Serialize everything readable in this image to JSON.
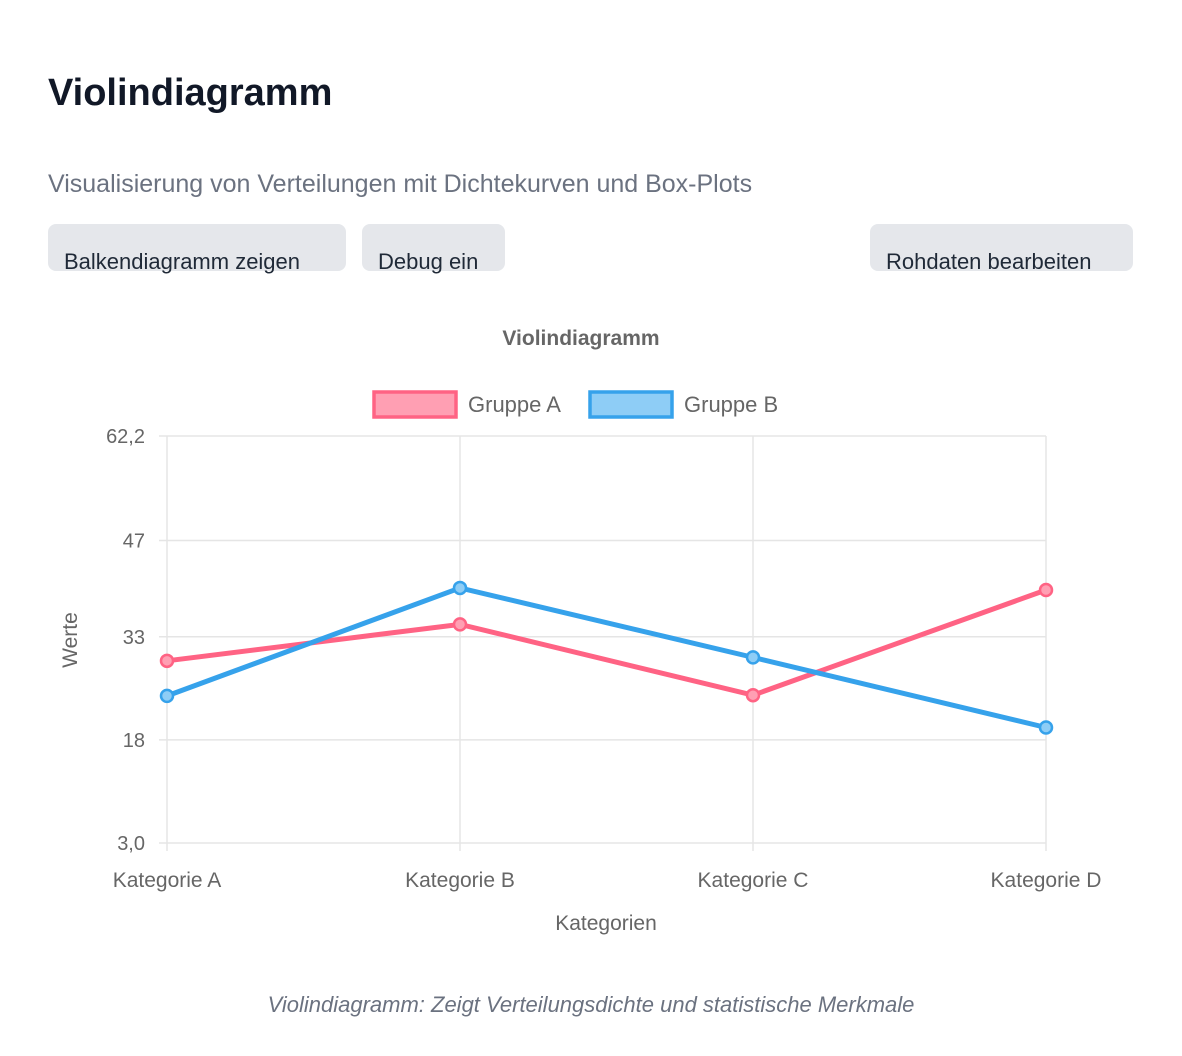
{
  "header": {
    "title": "Violindiagramm",
    "subtitle": "Visualisierung von Verteilungen mit Dichtekurven und Box-Plots"
  },
  "toolbar": {
    "bar_chart_label": "Balkendiagramm zeigen",
    "debug_label": "Debug ein",
    "raw_data_label": "Rohdaten bearbeiten"
  },
  "caption": "Violindiagramm: Zeigt Verteilungsdichte und statistische Merkmale",
  "colors": {
    "series_a": "#ff6384",
    "series_b": "#36a2eb",
    "grid": "#e5e5e5",
    "axis_text": "#666666"
  },
  "chart_data": {
    "type": "line",
    "title": "Violindiagramm",
    "xlabel": "Kategorien",
    "ylabel": "Werte",
    "categories": [
      "Kategorie A",
      "Kategorie B",
      "Kategorie C",
      "Kategorie D"
    ],
    "yticks": [
      "62,2",
      "47",
      "33",
      "18",
      "3,0"
    ],
    "ylim": [
      3.0,
      62.2
    ],
    "grid": true,
    "legend_position": "top",
    "series": [
      {
        "name": "Gruppe A",
        "values": [
          29.5,
          34.8,
          24.5,
          39.8
        ]
      },
      {
        "name": "Gruppe B",
        "values": [
          24.4,
          40.1,
          30.0,
          19.8
        ]
      }
    ]
  }
}
